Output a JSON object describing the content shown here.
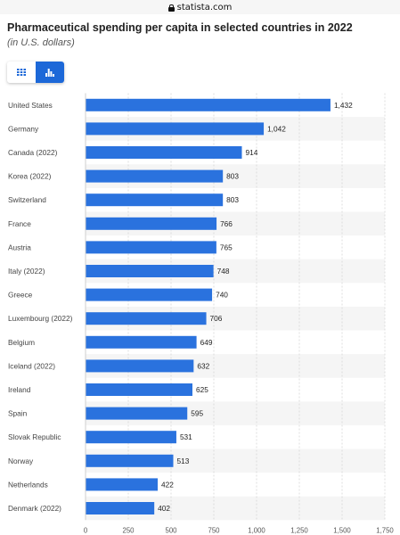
{
  "browser": {
    "url": "statista.com"
  },
  "header": {
    "title": "Pharmaceutical spending per capita in selected countries in 2022",
    "subtitle": "(in U.S. dollars)"
  },
  "view_toggle": {
    "options": [
      {
        "icon": "table-grid-icon",
        "active": false
      },
      {
        "icon": "bar-chart-icon",
        "active": true
      }
    ]
  },
  "colors": {
    "bar": "#2a72de",
    "stripe": "#f5f5f5",
    "toggle_active": "#1c68d8"
  },
  "chart_data": {
    "type": "bar",
    "orientation": "horizontal",
    "title": "Pharmaceutical spending per capita in selected countries in 2022",
    "subtitle": "(in U.S. dollars)",
    "categories": [
      "United States",
      "Germany",
      "Canada (2022)",
      "Korea (2022)",
      "Switzerland",
      "France",
      "Austria",
      "Italy (2022)",
      "Greece",
      "Luxembourg (2022)",
      "Belgium",
      "Iceland (2022)",
      "Ireland",
      "Spain",
      "Slovak Republic",
      "Norway",
      "Netherlands",
      "Denmark (2022)"
    ],
    "values": [
      1432,
      1042,
      914,
      803,
      803,
      766,
      765,
      748,
      740,
      706,
      649,
      632,
      625,
      595,
      531,
      513,
      422,
      402
    ],
    "value_labels": [
      "1,432",
      "1,042",
      "914",
      "803",
      "803",
      "766",
      "765",
      "748",
      "740",
      "706",
      "649",
      "632",
      "625",
      "595",
      "531",
      "513",
      "422",
      "402"
    ],
    "xlim": [
      0,
      1750
    ],
    "xticks": [
      0,
      250,
      500,
      750,
      1000,
      1250,
      1500,
      1750
    ],
    "xtick_labels": [
      "0",
      "250",
      "500",
      "750",
      "1,000",
      "1,250",
      "1,500",
      "1,750"
    ],
    "xlabel": "",
    "ylabel": "",
    "grid": true,
    "legend": "none"
  }
}
